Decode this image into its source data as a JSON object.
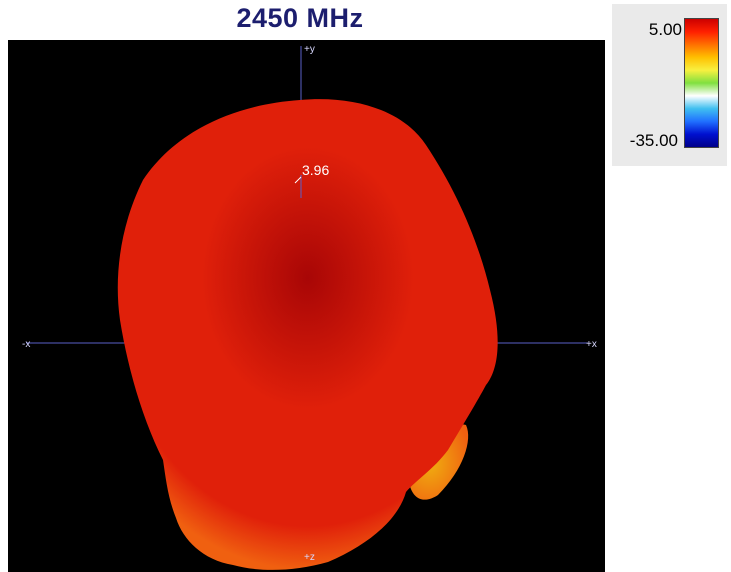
{
  "title": "2450 MHz",
  "colors": {
    "title": "#1c1e6e",
    "background": "#000000",
    "axis": "#5a60c8",
    "pattern_main": "#e0200a",
    "pattern_dark": "#a80606",
    "pattern_edge": "#f06010",
    "pattern_low": "#f0b010"
  },
  "axes": {
    "plus_y": "+y",
    "minus_x": "-x",
    "plus_x": "+x",
    "plus_z": "+z"
  },
  "peak_value": "3.96",
  "legend": {
    "max_label": "5.00",
    "min_label": "-35.00",
    "gradient": [
      "#cc0000",
      "#ff2000",
      "#ff7000",
      "#ffc000",
      "#f8f040",
      "#80e040",
      "#ffffff",
      "#40c0f0",
      "#2070ff",
      "#0010d0",
      "#00008a"
    ]
  }
}
